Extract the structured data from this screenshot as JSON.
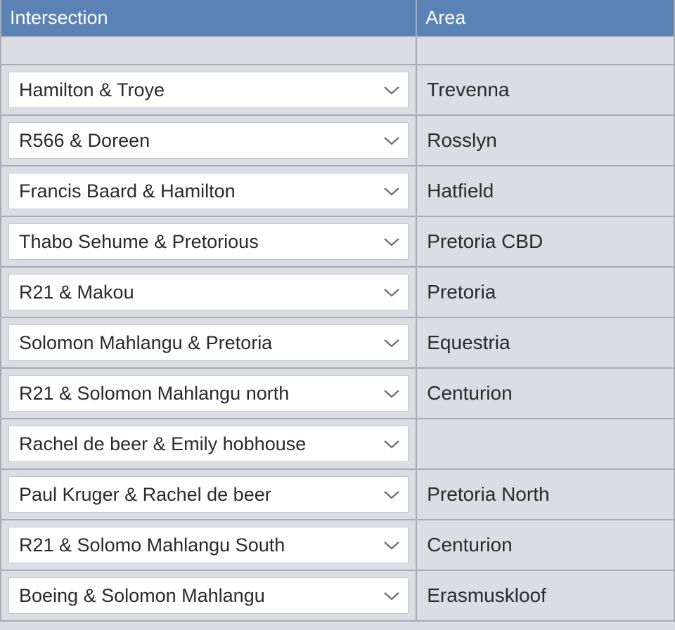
{
  "table": {
    "columns": [
      "Intersection",
      "Area"
    ],
    "header_bg": "#5a82b5",
    "header_text_color": "#ffffff",
    "body_bg": "#dcdde4",
    "border_color": "#a8aab5",
    "dropdown_bg": "#ffffff",
    "chevron_color": "#6b6b6b",
    "text_color": "#2a2a2a",
    "header_fontsize": 27,
    "cell_fontsize": 28,
    "rows": [
      {
        "intersection": "Hamilton & Troye",
        "area": "Trevenna"
      },
      {
        "intersection": "R566 & Doreen",
        "area": "Rosslyn"
      },
      {
        "intersection": "Francis Baard & Hamilton",
        "area": "Hatfield"
      },
      {
        "intersection": "Thabo Sehume & Pretorious",
        "area": "Pretoria  CBD"
      },
      {
        "intersection": "R21 & Makou",
        "area": "Pretoria"
      },
      {
        "intersection": "Solomon Mahlangu & Pretoria",
        "area": "Equestria"
      },
      {
        "intersection": "R21 & Solomon Mahlangu north",
        "area": "Centurion"
      },
      {
        "intersection": "Rachel de beer & Emily hobhouse",
        "area": ""
      },
      {
        "intersection": "Paul Kruger & Rachel de beer",
        "area": "Pretoria  North"
      },
      {
        "intersection": "R21 & Solomo Mahlangu South",
        "area": "Centurion"
      },
      {
        "intersection": "Boeing & Solomon Mahlangu",
        "area": "Erasmuskloof"
      }
    ]
  }
}
